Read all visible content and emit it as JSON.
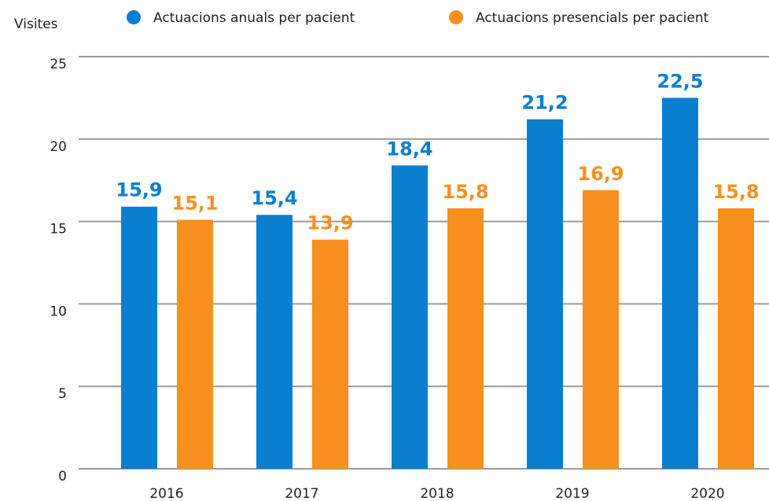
{
  "chart_data": {
    "type": "bar",
    "y_label": "Visites",
    "categories": [
      "2016",
      "2017",
      "2018",
      "2019",
      "2020"
    ],
    "series": [
      {
        "name": "Actuacions anuals per pacient",
        "color": "#0a7fcf",
        "values": [
          15.9,
          15.4,
          18.4,
          21.2,
          22.5
        ],
        "value_labels": [
          "15,9",
          "15,4",
          "18,4",
          "21,2",
          "22,5"
        ]
      },
      {
        "name": "Actuacions presencials per pacient",
        "color": "#f7901e",
        "values": [
          15.1,
          13.9,
          15.8,
          16.9,
          15.8
        ],
        "value_labels": [
          "15,1",
          "13,9",
          "15,8",
          "16,9",
          "15,8"
        ]
      }
    ],
    "ylim": [
      0,
      25
    ],
    "yticks": [
      0,
      5,
      10,
      15,
      20,
      25
    ],
    "grid": true,
    "legend": "top"
  }
}
